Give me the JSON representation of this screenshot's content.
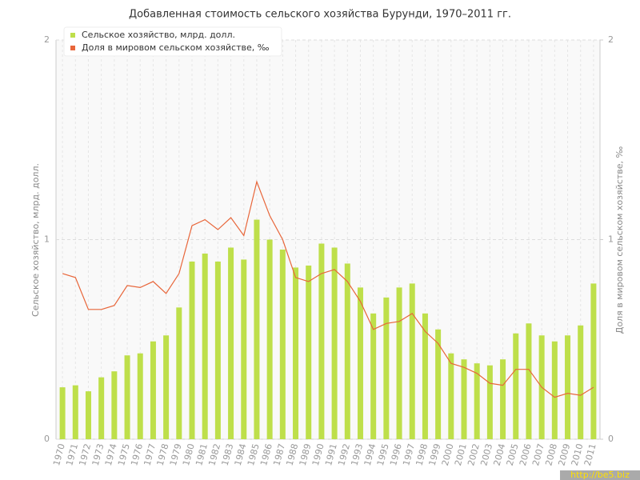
{
  "chart_data": {
    "type": "bar-line",
    "title": "Добавленная стоимость сельского хозяйства Бурунди, 1970–2011 гг.",
    "y_label": "Сельское хозяйство, млрд. долл.",
    "y2_label": "Доля в мировом сельском хозяйстве, ‰",
    "watermark": "http://be5.biz",
    "categories": [
      "1970",
      "1971",
      "1972",
      "1973",
      "1974",
      "1975",
      "1976",
      "1977",
      "1978",
      "1979",
      "1980",
      "1981",
      "1982",
      "1983",
      "1984",
      "1985",
      "1986",
      "1987",
      "1988",
      "1989",
      "1990",
      "1991",
      "1992",
      "1993",
      "1994",
      "1995",
      "1996",
      "1997",
      "1998",
      "1999",
      "2000",
      "2001",
      "2002",
      "2003",
      "2004",
      "2005",
      "2006",
      "2007",
      "2008",
      "2009",
      "2010",
      "2011"
    ],
    "series": [
      {
        "name": "Сельское хозяйство, млрд. долл.",
        "type": "bar",
        "color": "#bedf4a",
        "values": [
          0.26,
          0.27,
          0.24,
          0.31,
          0.34,
          0.42,
          0.43,
          0.49,
          0.52,
          0.66,
          0.89,
          0.93,
          0.89,
          0.96,
          0.9,
          1.1,
          1.0,
          0.95,
          0.86,
          0.87,
          0.98,
          0.96,
          0.88,
          0.76,
          0.63,
          0.71,
          0.76,
          0.78,
          0.63,
          0.55,
          0.43,
          0.4,
          0.38,
          0.37,
          0.4,
          0.53,
          0.58,
          0.52,
          0.49,
          0.52,
          0.57,
          0.78
        ]
      },
      {
        "name": "Доля в мировом сельском хозяйстве, ‰",
        "type": "line",
        "axis": "y2",
        "color": "#e8663a",
        "values": [
          0.83,
          0.81,
          0.65,
          0.65,
          0.67,
          0.77,
          0.76,
          0.79,
          0.73,
          0.83,
          1.07,
          1.1,
          1.05,
          1.11,
          1.02,
          1.29,
          1.12,
          1.0,
          0.81,
          0.79,
          0.83,
          0.85,
          0.79,
          0.69,
          0.55,
          0.58,
          0.59,
          0.63,
          0.54,
          0.48,
          0.38,
          0.36,
          0.33,
          0.28,
          0.27,
          0.35,
          0.35,
          0.26,
          0.21,
          0.23,
          0.22,
          0.26
        ]
      }
    ],
    "ylim": [
      0,
      2
    ],
    "yticks": [
      0,
      1,
      2
    ],
    "y2lim": [
      0,
      2
    ],
    "y2ticks": [
      0,
      1,
      2
    ],
    "grid": true,
    "legend": "top-left"
  }
}
